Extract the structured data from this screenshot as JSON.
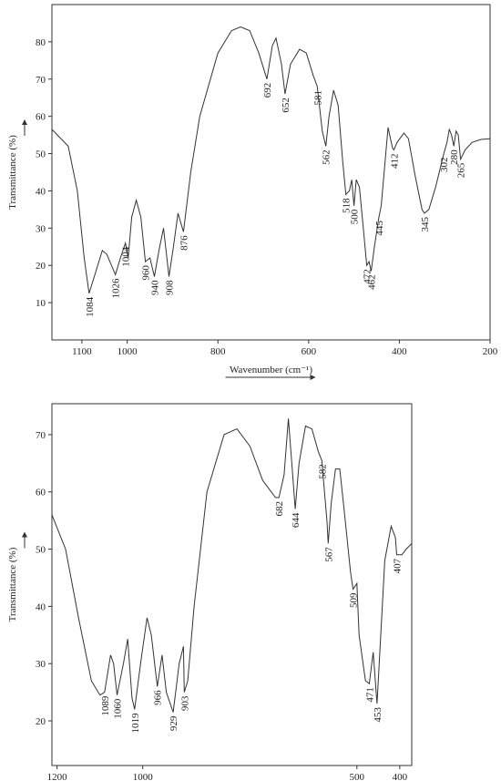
{
  "chart_data": [
    {
      "type": "line",
      "x_label": "Wavenumber (cm⁻¹)",
      "y_label": "Transmittance (%)",
      "color": "#333333",
      "xlim": [
        1166,
        200
      ],
      "ylim": [
        0,
        90
      ],
      "xticks": [
        1100,
        1000,
        800,
        600,
        400,
        200
      ],
      "yticks": [
        10,
        20,
        30,
        40,
        50,
        60,
        70,
        80
      ],
      "x": [
        1166,
        1130,
        1110,
        1095,
        1084,
        1070,
        1055,
        1045,
        1026,
        1015,
        1004,
        998,
        990,
        980,
        970,
        960,
        950,
        940,
        930,
        920,
        908,
        898,
        888,
        876,
        860,
        840,
        800,
        770,
        750,
        730,
        710,
        692,
        680,
        672,
        660,
        652,
        640,
        620,
        605,
        590,
        581,
        570,
        562,
        555,
        545,
        535,
        525,
        518,
        510,
        505,
        500,
        495,
        488,
        478,
        472,
        467,
        462,
        455,
        445,
        440,
        430,
        425,
        415,
        412,
        405,
        390,
        380,
        365,
        350,
        345,
        335,
        320,
        302,
        295,
        290,
        285,
        280,
        275,
        270,
        265,
        255,
        240,
        220,
        200
      ],
      "values": [
        56.5,
        52,
        40,
        22,
        12.5,
        18,
        24,
        23,
        17.5,
        22,
        26,
        22,
        33,
        37.5,
        33,
        21,
        22,
        17,
        24,
        30,
        17,
        25,
        34,
        29,
        45,
        60,
        77,
        83,
        84,
        83,
        77,
        70,
        79,
        81,
        74,
        66,
        74,
        78,
        77,
        71,
        68,
        56,
        52,
        60,
        67,
        63,
        48,
        39,
        40,
        43,
        36,
        43,
        41,
        28,
        20,
        21,
        18.5,
        25,
        33,
        36,
        50,
        57,
        51.5,
        51,
        53,
        55.5,
        54,
        44,
        35,
        34,
        35,
        41,
        50,
        53,
        56.5,
        55,
        52,
        56,
        55,
        48.5,
        51,
        53,
        53.8,
        54
      ],
      "peak_labels": [
        1084,
        1026,
        1004,
        960,
        940,
        908,
        876,
        692,
        652,
        581,
        562,
        518,
        500,
        472,
        462,
        445,
        412,
        345,
        302,
        280,
        265
      ]
    },
    {
      "type": "line",
      "x_label": "Wavenumber (cm⁻¹)",
      "y_label": "Transmittance (%)",
      "color": "#333333",
      "xlim": [
        1212,
        372
      ],
      "ylim": [
        12.2,
        75.4
      ],
      "xticks": [
        1200,
        1000,
        500,
        400
      ],
      "yticks": [
        20,
        30,
        40,
        50,
        60,
        70
      ],
      "x": [
        1212,
        1180,
        1150,
        1120,
        1100,
        1089,
        1075,
        1068,
        1060,
        1045,
        1035,
        1025,
        1019,
        1005,
        990,
        980,
        966,
        955,
        945,
        929,
        915,
        905,
        903,
        895,
        880,
        850,
        810,
        780,
        750,
        720,
        690,
        682,
        670,
        660,
        650,
        644,
        635,
        620,
        605,
        590,
        582,
        570,
        567,
        560,
        550,
        540,
        530,
        515,
        509,
        500,
        495,
        480,
        471,
        462,
        453,
        448,
        435,
        420,
        410,
        407,
        395,
        385,
        372
      ],
      "values": [
        56,
        50,
        38,
        27,
        24.5,
        25,
        31.5,
        30,
        24.5,
        30,
        34.3,
        24,
        22,
        30,
        38,
        35,
        26,
        31.5,
        25,
        21.5,
        30,
        33,
        25,
        27,
        40,
        60,
        70,
        71,
        68,
        62,
        59,
        59,
        63,
        72.8,
        63,
        57,
        65,
        71.5,
        71,
        67,
        65.5,
        55,
        51,
        58,
        64,
        64,
        57,
        46,
        43,
        44,
        35,
        27,
        26.5,
        32,
        23,
        30,
        48,
        54,
        52,
        49,
        49,
        50,
        51
      ],
      "peak_labels": [
        1089,
        1060,
        1019,
        966,
        929,
        903,
        682,
        644,
        582,
        567,
        509,
        471,
        453,
        407
      ]
    }
  ]
}
